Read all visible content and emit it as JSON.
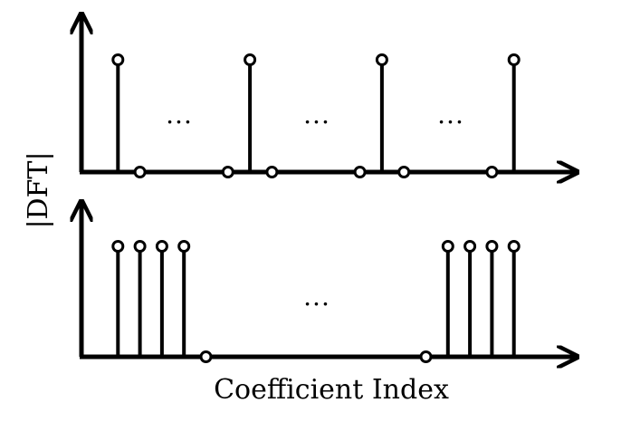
{
  "ylabel": "|DFT|",
  "xlabel": "Coefficient Index",
  "colors": {
    "stroke": "#000000",
    "background": "#ffffff"
  },
  "panels": [
    {
      "name": "top",
      "stems_index": [
        1,
        7,
        13,
        19
      ],
      "zeros_index": [
        2,
        6,
        8,
        12,
        14,
        18
      ],
      "ellipsis": [
        "...",
        "...",
        "..."
      ]
    },
    {
      "name": "bottom",
      "stems_index": [
        1,
        2,
        3,
        4,
        16,
        17,
        18,
        19
      ],
      "zeros_index": [
        5,
        15
      ],
      "ellipsis": [
        "..."
      ]
    }
  ]
}
